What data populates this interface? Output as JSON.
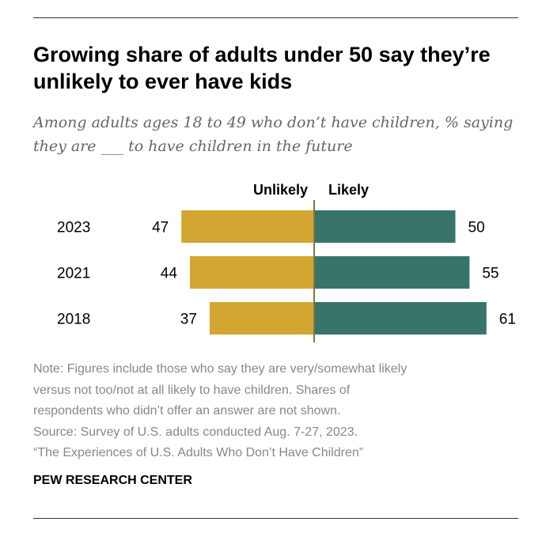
{
  "header": {
    "title": "Growing share of adults under 50 say they’re unlikely to ever have kids",
    "subtitle": "Among adults ages 18 to 49 who don’t have children, % saying they are ___ to have children in the future"
  },
  "chart_data": {
    "type": "bar",
    "orientation": "horizontal-diverging",
    "categories": [
      "2023",
      "2021",
      "2018"
    ],
    "series": [
      {
        "name": "Unlikely",
        "values": [
          47,
          44,
          37
        ],
        "color": "#D3A631"
      },
      {
        "name": "Likely",
        "values": [
          50,
          55,
          61
        ],
        "color": "#37756A"
      }
    ],
    "xlim": [
      -50,
      65
    ],
    "grid": false,
    "legend": "top"
  },
  "footer": {
    "notes": [
      "Note: Figures include those who say they are very/somewhat likely",
      "versus not too/not at all likely to have children. Shares of",
      "respondents who didn’t offer an answer are not shown.",
      "Source: Survey of U.S. adults conducted Aug. 7-27, 2023.",
      "“The Experiences of U.S. Adults Who Don’t Have Children”"
    ],
    "brand": "PEW RESEARCH CENTER"
  }
}
